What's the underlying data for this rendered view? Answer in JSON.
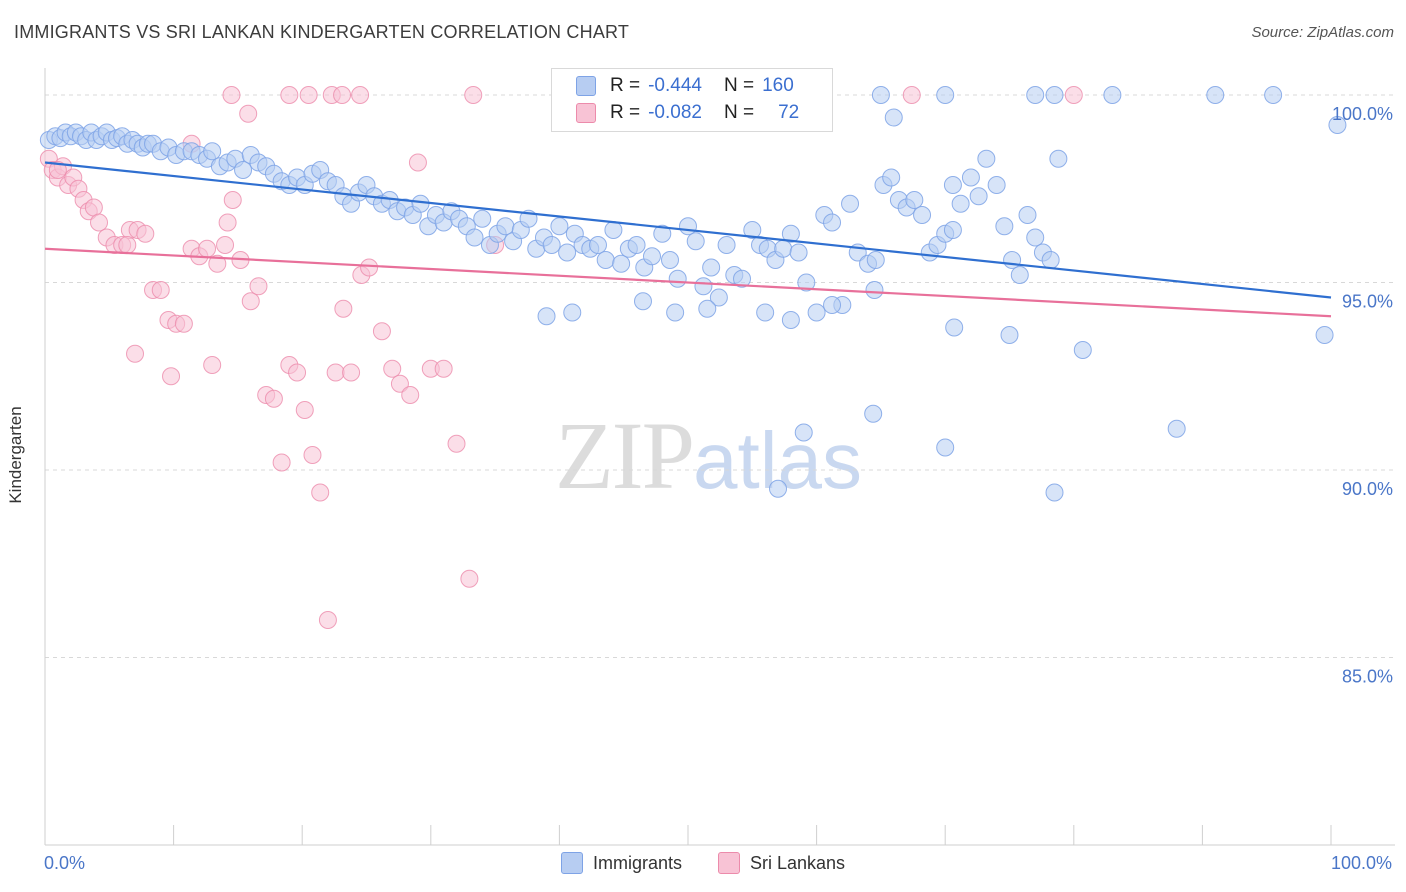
{
  "header": {
    "title": "IMMIGRANTS VS SRI LANKAN KINDERGARTEN CORRELATION CHART",
    "source": "Source: ZipAtlas.com"
  },
  "watermark": {
    "zip": "ZIP",
    "atlas": "atlas"
  },
  "stats": {
    "r_label": "R = ",
    "n_label": "N = ",
    "immigrants": {
      "r": "-0.444",
      "n": "160"
    },
    "sri_lankans": {
      "r": "-0.082",
      "n": "72"
    }
  },
  "legend": {
    "immigrants": "Immigrants",
    "sri_lankans": "Sri Lankans"
  },
  "colors": {
    "immigrants_fill": "#b7cdf2",
    "immigrants_stroke": "#7ea3e6",
    "immigrants_line": "#2f6fd0",
    "sri_fill": "#f8c3d5",
    "sri_stroke": "#ec8bab",
    "sri_line": "#e8709a",
    "tick_label": "#4a76c8",
    "grid": "#d8d8d8"
  },
  "chart_data": {
    "type": "scatter",
    "title": "IMMIGRANTS VS SRI LANKAN KINDERGARTEN CORRELATION CHART",
    "xlabel": "",
    "ylabel": "Kindergarten",
    "xlim": [
      0,
      100
    ],
    "ylim": [
      80,
      100.8
    ],
    "x_tick_labels": [
      "0.0%",
      "100.0%"
    ],
    "y_ticks": [
      85,
      90,
      95,
      100
    ],
    "y_tick_labels": [
      "85.0%",
      "90.0%",
      "95.0%",
      "100.0%"
    ],
    "grid": "horizontal dashed",
    "legend_position": "bottom-center",
    "series": [
      {
        "name": "Immigrants",
        "trend": {
          "x": [
            0,
            100
          ],
          "y": [
            98.2,
            94.6
          ]
        },
        "points": [
          [
            0.3,
            98.8
          ],
          [
            0.8,
            98.9
          ],
          [
            1.2,
            98.85
          ],
          [
            1.6,
            99.0
          ],
          [
            2.0,
            98.9
          ],
          [
            2.4,
            99.0
          ],
          [
            2.8,
            98.9
          ],
          [
            3.2,
            98.8
          ],
          [
            3.6,
            99.0
          ],
          [
            4.0,
            98.8
          ],
          [
            4.4,
            98.9
          ],
          [
            4.8,
            99.0
          ],
          [
            5.2,
            98.8
          ],
          [
            5.6,
            98.85
          ],
          [
            6.0,
            98.9
          ],
          [
            6.4,
            98.7
          ],
          [
            6.8,
            98.8
          ],
          [
            7.2,
            98.7
          ],
          [
            7.6,
            98.6
          ],
          [
            8.0,
            98.7
          ],
          [
            8.4,
            98.7
          ],
          [
            9.0,
            98.5
          ],
          [
            9.6,
            98.6
          ],
          [
            10.2,
            98.4
          ],
          [
            10.8,
            98.5
          ],
          [
            11.4,
            98.5
          ],
          [
            12.0,
            98.4
          ],
          [
            12.6,
            98.3
          ],
          [
            13.0,
            98.5
          ],
          [
            13.6,
            98.1
          ],
          [
            14.2,
            98.2
          ],
          [
            14.8,
            98.3
          ],
          [
            15.4,
            98.0
          ],
          [
            16.0,
            98.4
          ],
          [
            16.6,
            98.2
          ],
          [
            17.2,
            98.1
          ],
          [
            17.8,
            97.9
          ],
          [
            18.4,
            97.7
          ],
          [
            19.0,
            97.6
          ],
          [
            19.6,
            97.8
          ],
          [
            20.2,
            97.6
          ],
          [
            20.8,
            97.9
          ],
          [
            21.4,
            98.0
          ],
          [
            22.0,
            97.7
          ],
          [
            22.6,
            97.6
          ],
          [
            23.2,
            97.3
          ],
          [
            23.8,
            97.1
          ],
          [
            24.4,
            97.4
          ],
          [
            25.0,
            97.6
          ],
          [
            25.6,
            97.3
          ],
          [
            26.2,
            97.1
          ],
          [
            26.8,
            97.2
          ],
          [
            27.4,
            96.9
          ],
          [
            28.0,
            97.0
          ],
          [
            28.6,
            96.8
          ],
          [
            29.2,
            97.1
          ],
          [
            29.8,
            96.5
          ],
          [
            30.4,
            96.8
          ],
          [
            31.0,
            96.6
          ],
          [
            31.6,
            96.9
          ],
          [
            32.2,
            96.7
          ],
          [
            32.8,
            96.5
          ],
          [
            33.4,
            96.2
          ],
          [
            34.0,
            96.7
          ],
          [
            34.6,
            96.0
          ],
          [
            35.2,
            96.3
          ],
          [
            35.8,
            96.5
          ],
          [
            36.4,
            96.1
          ],
          [
            37.0,
            96.4
          ],
          [
            37.6,
            96.7
          ],
          [
            38.2,
            95.9
          ],
          [
            38.8,
            96.2
          ],
          [
            39.4,
            96.0
          ],
          [
            40.0,
            96.5
          ],
          [
            40.6,
            95.8
          ],
          [
            41.2,
            96.3
          ],
          [
            41.8,
            96.0
          ],
          [
            42.4,
            95.9
          ],
          [
            43.0,
            96.0
          ],
          [
            43.6,
            95.6
          ],
          [
            44.2,
            96.4
          ],
          [
            44.8,
            95.5
          ],
          [
            45.4,
            95.9
          ],
          [
            46.0,
            96.0
          ],
          [
            46.6,
            95.4
          ],
          [
            47.2,
            95.7
          ],
          [
            48.0,
            96.3
          ],
          [
            48.6,
            95.6
          ],
          [
            49.2,
            95.1
          ],
          [
            50.0,
            96.5
          ],
          [
            50.6,
            96.1
          ],
          [
            51.2,
            94.9
          ],
          [
            51.8,
            95.4
          ],
          [
            52.4,
            94.6
          ],
          [
            53.0,
            96.0
          ],
          [
            53.6,
            95.2
          ],
          [
            54.2,
            95.1
          ],
          [
            55.0,
            96.4
          ],
          [
            55.6,
            96.0
          ],
          [
            56.2,
            95.9
          ],
          [
            56.8,
            95.6
          ],
          [
            57.4,
            95.9
          ],
          [
            58.0,
            96.3
          ],
          [
            58.6,
            95.8
          ],
          [
            59.2,
            95.0
          ],
          [
            60.0,
            94.2
          ],
          [
            60.6,
            96.8
          ],
          [
            61.2,
            96.6
          ],
          [
            62.0,
            94.4
          ],
          [
            62.6,
            97.1
          ],
          [
            63.2,
            95.8
          ],
          [
            64.0,
            95.5
          ],
          [
            64.6,
            95.6
          ],
          [
            65.2,
            97.6
          ],
          [
            65.8,
            97.8
          ],
          [
            66.4,
            97.2
          ],
          [
            67.0,
            97.0
          ],
          [
            67.6,
            97.2
          ],
          [
            68.2,
            96.8
          ],
          [
            68.8,
            95.8
          ],
          [
            69.4,
            96.0
          ],
          [
            70.0,
            96.3
          ],
          [
            70.6,
            96.4
          ],
          [
            71.2,
            97.1
          ],
          [
            72.0,
            97.8
          ],
          [
            72.6,
            97.3
          ],
          [
            73.2,
            98.3
          ],
          [
            74.0,
            97.6
          ],
          [
            74.6,
            96.5
          ],
          [
            75.2,
            95.6
          ],
          [
            75.8,
            95.2
          ],
          [
            76.4,
            96.8
          ],
          [
            77.0,
            96.2
          ],
          [
            77.6,
            95.8
          ],
          [
            78.2,
            95.6
          ],
          [
            78.8,
            98.3
          ],
          [
            41.0,
            94.2
          ],
          [
            49.0,
            94.2
          ],
          [
            56.0,
            94.2
          ],
          [
            58.0,
            94.0
          ],
          [
            61.2,
            94.4
          ],
          [
            70.7,
            93.8
          ],
          [
            80.7,
            93.2
          ],
          [
            39.0,
            94.1
          ],
          [
            46.5,
            94.5
          ],
          [
            51.5,
            94.3
          ],
          [
            64.5,
            94.8
          ],
          [
            75.0,
            93.6
          ],
          [
            64.4,
            91.5
          ],
          [
            59.0,
            91.0
          ],
          [
            70.0,
            90.6
          ],
          [
            57.0,
            89.5
          ],
          [
            78.5,
            89.4
          ],
          [
            88.0,
            91.1
          ],
          [
            99.5,
            93.6
          ],
          [
            65.0,
            100.0
          ],
          [
            70.0,
            100.0
          ],
          [
            77.0,
            100.0
          ],
          [
            78.5,
            100.0
          ],
          [
            83.0,
            100.0
          ],
          [
            91.0,
            100.0
          ],
          [
            95.5,
            100.0
          ],
          [
            100.5,
            99.2
          ],
          [
            66.0,
            99.4
          ],
          [
            70.6,
            97.6
          ]
        ]
      },
      {
        "name": "Sri Lankans",
        "trend": {
          "x": [
            0,
            100
          ],
          "y": [
            95.9,
            94.1
          ]
        },
        "points": [
          [
            0.3,
            98.3
          ],
          [
            0.6,
            98.0
          ],
          [
            1.0,
            97.8
          ],
          [
            1.4,
            98.1
          ],
          [
            1.8,
            97.6
          ],
          [
            2.2,
            97.8
          ],
          [
            2.6,
            97.5
          ],
          [
            3.0,
            97.2
          ],
          [
            3.4,
            96.9
          ],
          [
            3.8,
            97.0
          ],
          [
            4.2,
            96.6
          ],
          [
            4.8,
            96.2
          ],
          [
            5.4,
            96.0
          ],
          [
            6.0,
            96.0
          ],
          [
            6.6,
            96.4
          ],
          [
            7.2,
            96.4
          ],
          [
            7.8,
            96.3
          ],
          [
            8.4,
            94.8
          ],
          [
            9.0,
            94.8
          ],
          [
            9.6,
            94.0
          ],
          [
            10.2,
            93.9
          ],
          [
            10.8,
            93.9
          ],
          [
            11.4,
            95.9
          ],
          [
            12.0,
            95.7
          ],
          [
            12.6,
            95.9
          ],
          [
            13.4,
            95.5
          ],
          [
            14.0,
            96.0
          ],
          [
            14.6,
            97.2
          ],
          [
            15.2,
            95.6
          ],
          [
            16.0,
            94.5
          ],
          [
            16.6,
            94.9
          ],
          [
            17.2,
            92.0
          ],
          [
            17.8,
            91.9
          ],
          [
            18.4,
            90.2
          ],
          [
            19.0,
            92.8
          ],
          [
            19.6,
            92.6
          ],
          [
            20.2,
            91.6
          ],
          [
            20.8,
            90.4
          ],
          [
            21.4,
            89.4
          ],
          [
            22.0,
            86.0
          ],
          [
            22.6,
            92.6
          ],
          [
            23.2,
            94.3
          ],
          [
            23.8,
            92.6
          ],
          [
            24.6,
            95.2
          ],
          [
            25.2,
            95.4
          ],
          [
            26.2,
            93.7
          ],
          [
            27.0,
            92.7
          ],
          [
            27.6,
            92.3
          ],
          [
            28.4,
            92.0
          ],
          [
            29.0,
            98.2
          ],
          [
            30.0,
            92.7
          ],
          [
            31.0,
            92.7
          ],
          [
            32.0,
            90.7
          ],
          [
            33.0,
            87.1
          ],
          [
            7.0,
            93.1
          ],
          [
            9.8,
            92.5
          ],
          [
            13.0,
            92.8
          ],
          [
            6.4,
            96.0
          ],
          [
            35.0,
            96.0
          ],
          [
            14.2,
            96.6
          ],
          [
            11.4,
            98.7
          ],
          [
            15.8,
            99.5
          ],
          [
            14.5,
            100.0
          ],
          [
            19.0,
            100.0
          ],
          [
            20.5,
            100.0
          ],
          [
            22.3,
            100.0
          ],
          [
            23.1,
            100.0
          ],
          [
            24.5,
            100.0
          ],
          [
            33.3,
            100.0
          ],
          [
            67.4,
            100.0
          ],
          [
            80.0,
            100.0
          ],
          [
            1.0,
            98.0
          ]
        ]
      }
    ]
  }
}
